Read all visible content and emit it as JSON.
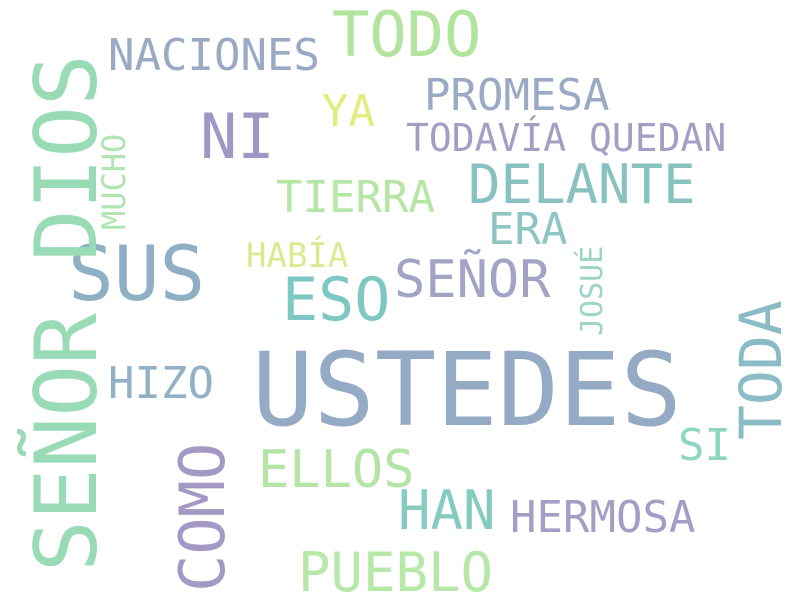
{
  "words": [
    {
      "text": "USTEDES",
      "color": "#95aac4"
    },
    {
      "text": "SEÑOR DIOS",
      "color": "#98dbb6"
    },
    {
      "text": "SUS",
      "color": "#8fb0c4"
    },
    {
      "text": "TODO",
      "color": "#b3e49e"
    },
    {
      "text": "NACIONES",
      "color": "#9aa9c4"
    },
    {
      "text": "PROMESA",
      "color": "#9aa9c4"
    },
    {
      "text": "NI",
      "color": "#a097c4"
    },
    {
      "text": "YA",
      "color": "#e3ec7e"
    },
    {
      "text": "TODAVÍA QUEDAN",
      "color": "#a49ec4"
    },
    {
      "text": "DELANTE",
      "color": "#88c2c0"
    },
    {
      "text": "TIERRA",
      "color": "#b6e6a6"
    },
    {
      "text": "ERA",
      "color": "#8fc4c4"
    },
    {
      "text": "HABÍA",
      "color": "#dbe990"
    },
    {
      "text": "SEÑOR",
      "color": "#a3a3c6"
    },
    {
      "text": "ESO",
      "color": "#7ec8c4"
    },
    {
      "text": "MUCHO",
      "color": "#b0e4b0"
    },
    {
      "text": "JOSUÉ",
      "color": "#9dd4c8"
    },
    {
      "text": "TODA",
      "color": "#8bbcc6"
    },
    {
      "text": "HIZO",
      "color": "#93b1c6"
    },
    {
      "text": "SI",
      "color": "#8ed6c4"
    },
    {
      "text": "ELLOS",
      "color": "#b4e4a6"
    },
    {
      "text": "HAN",
      "color": "#85cbbf"
    },
    {
      "text": "HERMOSA",
      "color": "#a49ec4"
    },
    {
      "text": "COMO",
      "color": "#a399c4"
    },
    {
      "text": "PUEBLO",
      "color": "#b6e8a8"
    }
  ]
}
